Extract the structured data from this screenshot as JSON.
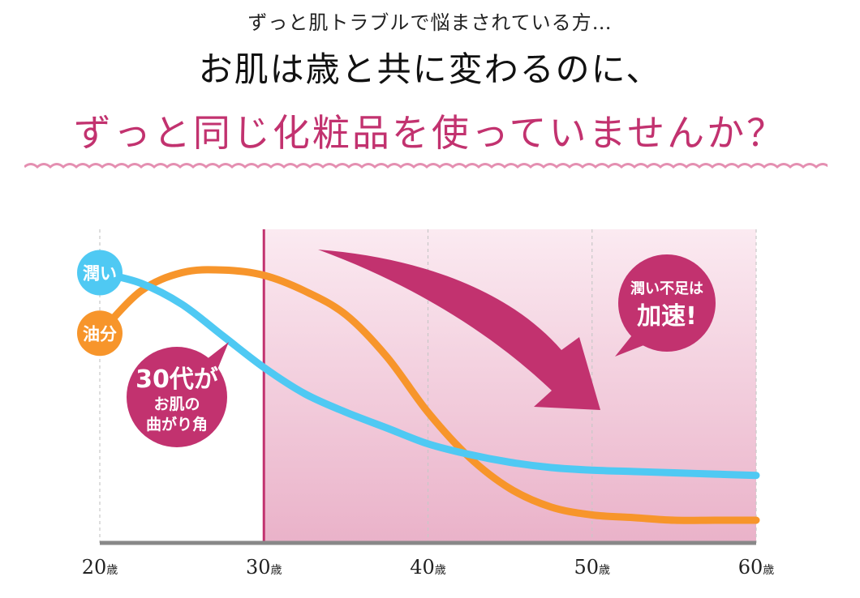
{
  "header": {
    "subtitle": "ずっと肌トラブルで悩まされている方…",
    "title": "お肌は歳と共に変わるのに、",
    "title2": "ずっと同じ化粧品を使っていませんか？"
  },
  "colors": {
    "accent": "#c2326f",
    "moisture": "#4fc9f3",
    "oil": "#f7952b",
    "shade": "#f1c3d5",
    "axis": "#888888"
  },
  "chart_data": {
    "type": "line",
    "x": [
      20,
      22.5,
      25,
      27.5,
      30,
      32.5,
      35,
      37.5,
      40,
      42.5,
      45,
      47.5,
      50,
      52.5,
      55,
      57.5,
      60
    ],
    "xlim": [
      20,
      60
    ],
    "ylim": [
      0,
      100
    ],
    "tick_values": [
      20,
      30,
      40,
      50,
      60
    ],
    "tick_labels": [
      "20",
      "30",
      "40",
      "50",
      "60"
    ],
    "tick_unit": "歳",
    "grid": "vertical dashed",
    "highlight_start": 30,
    "series": [
      {
        "name": "潤い",
        "color": "#4fc9f3",
        "values": [
          98,
          94,
          86,
          74,
          62,
          52,
          45,
          39,
          33,
          29,
          26,
          24,
          23,
          22.5,
          22,
          21.5,
          21
        ]
      },
      {
        "name": "油分",
        "color": "#f7952b",
        "values": [
          75,
          91,
          98,
          99,
          97,
          91,
          82,
          66,
          45,
          28,
          16,
          9,
          6,
          5,
          4,
          4,
          4
        ]
      }
    ],
    "annotations": {
      "turning_point": [
        "30代が",
        "お肌の",
        "曲がり角"
      ],
      "acceleration": [
        "潤い不足は",
        "加速!"
      ]
    }
  }
}
